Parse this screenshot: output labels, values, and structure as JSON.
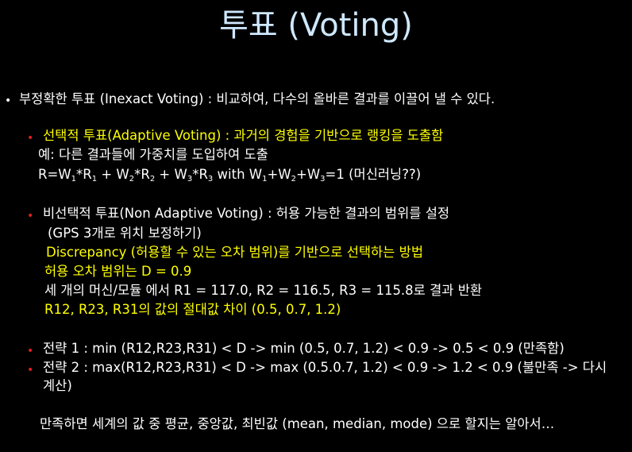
{
  "title": "투표 (Voting)",
  "main_bullet": "부정확한 투표 (Inexact Voting) : 비교하여, 다수의 올바른 결과를 이끌어 낼 수 있다.",
  "adaptive": {
    "bullet": "선택적  투표(Adaptive Voting) : 과거의 경험을 기반으로 랭킹을 도출함",
    "example": "예: 다른 결과들에 가중치를 도입하여 도출",
    "formula_a": "R=W",
    "s1": "1",
    "formula_b": "*R",
    "s2": "1",
    "formula_c": " + W",
    "s3": "2",
    "formula_d": "*R",
    "s4": "2",
    "formula_e": " + W",
    "s5": "3",
    "formula_f": "*R",
    "s6": "3",
    "formula_g": "  with   W",
    "s7": "1",
    "formula_h": "+W",
    "s8": "2",
    "formula_i": "+W",
    "s9": "3",
    "formula_j": "=1 (머신러닝??)"
  },
  "non_adaptive": {
    "bullet": "비선택적 투표(Non Adaptive Voting) : 허용 가능한 결과의 범위를 설정",
    "gps": "(GPS 3개로 위치 보정하기)",
    "discrepancy": "Discrepancy (허용할 수 있는 오차 범위)를 기반으로 선택하는 방법",
    "tolerance": "허용 오차 범위는 D = 0.9",
    "results": "세 개의 머신/모듈 에서 R1 = 117.0, R2 = 116.5, R3 = 115.8로 결과 반환",
    "abs_diff": "R12, R23, R31의 값의 절대값 차이 (0.5, 0.7, 1.2)"
  },
  "strategy1": "전략 1 : min (R12,R23,R31) < D  -> min (0.5, 0.7, 1.2) < 0.9 ->  0.5 < 0.9   (만족함)",
  "strategy2_line1": "전략 2 : max(R12,R23,R31) < D  -> max (0.5.0.7, 1.2) < 0.9 -> 1.2 < 0.9 (불만족 -> 다시",
  "strategy2_line2": "계산)",
  "conclusion": "만족하면 세계의 값 중 평균, 중앙값, 최빈값 (mean, median, mode)  으로 할지는 알아서…",
  "colors": {
    "background": "#000000",
    "title": "#cfe8ff",
    "text": "#ffffff",
    "highlight": "#ffff00",
    "sub_bullet": "#e02020"
  }
}
